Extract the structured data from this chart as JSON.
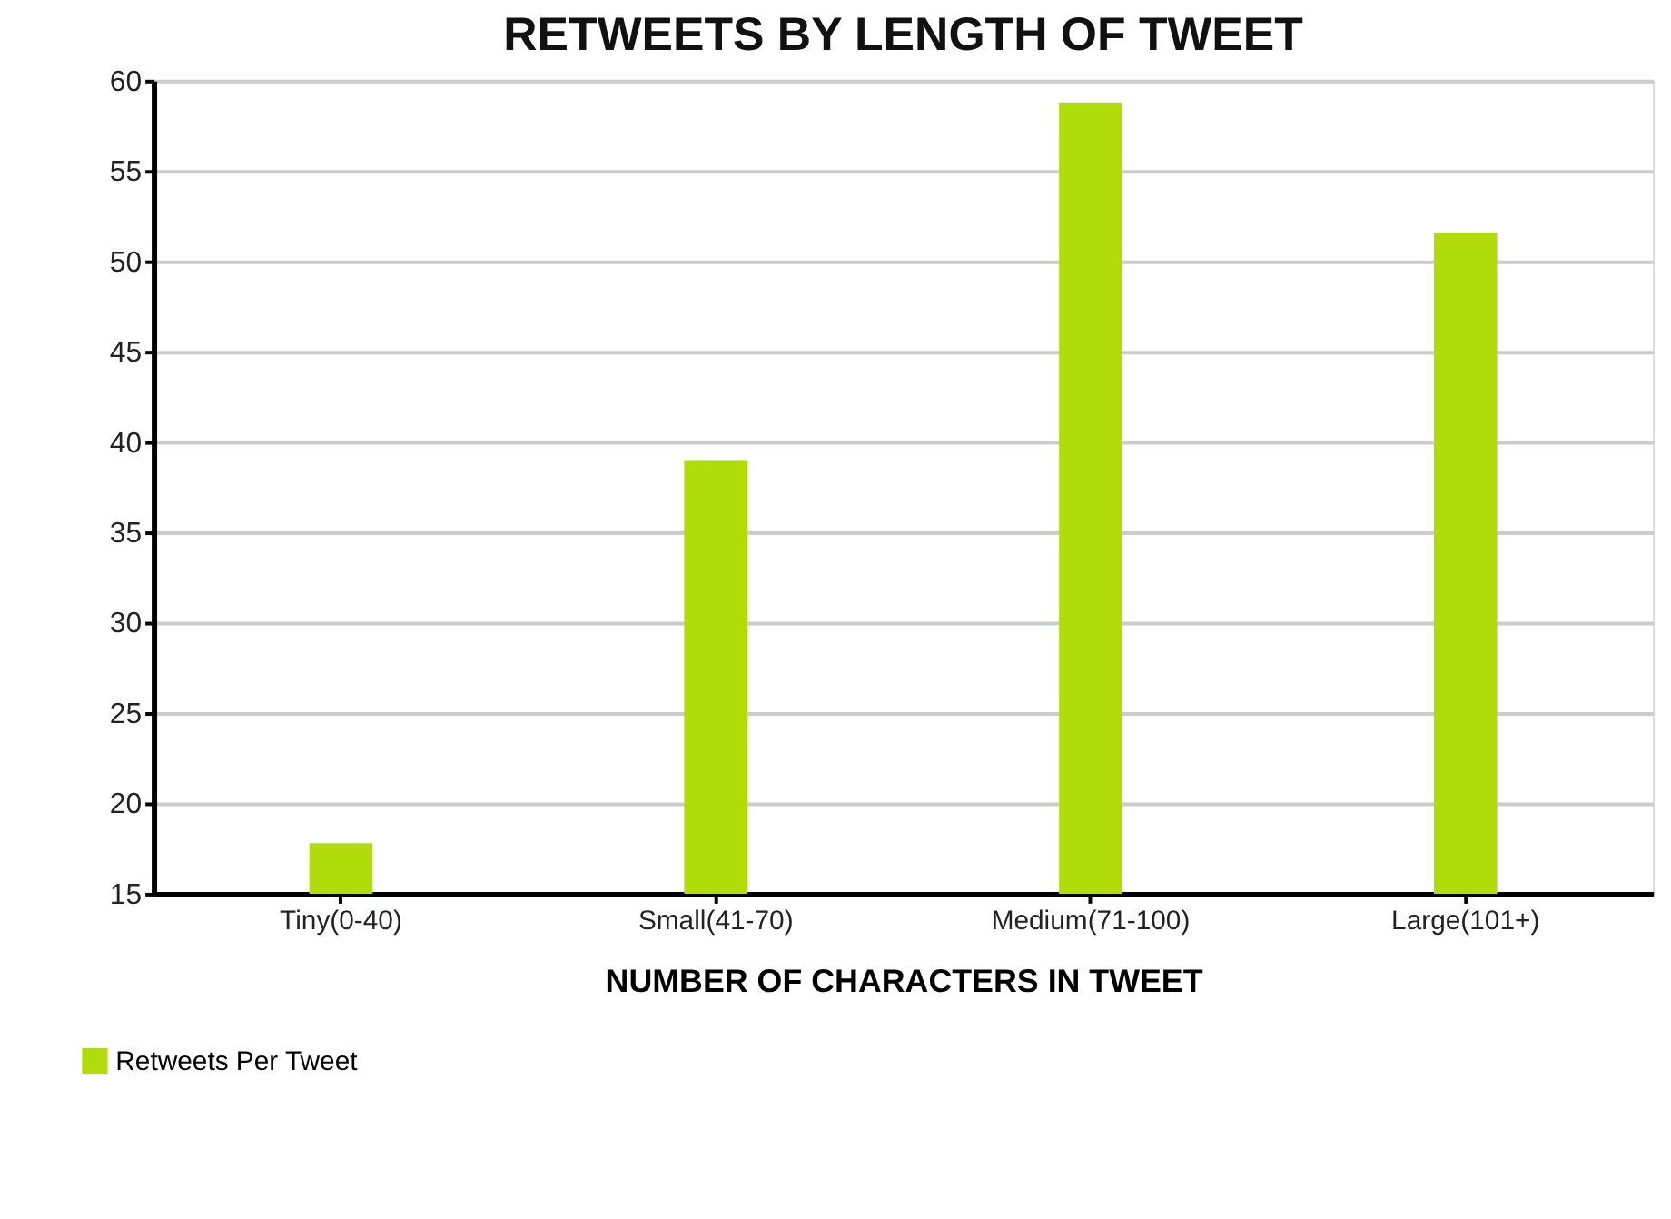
{
  "chart_data": {
    "type": "bar",
    "title": "RETWEETS BY LENGTH OF TWEET",
    "xlabel": "NUMBER OF CHARACTERS IN TWEET",
    "categories": [
      "Tiny(0-40)",
      "Small(41-70)",
      "Medium(71-100)",
      "Large(101+)"
    ],
    "series": [
      {
        "name": "Retweets Per Tweet",
        "color": "#b0dc0a",
        "values": [
          17.8,
          39.0,
          58.8,
          51.6
        ]
      }
    ],
    "ylim": [
      15,
      60
    ],
    "yticks": [
      15,
      20,
      25,
      30,
      35,
      40,
      45,
      50,
      55,
      60
    ],
    "grid": "y",
    "legend": "bottom left"
  }
}
